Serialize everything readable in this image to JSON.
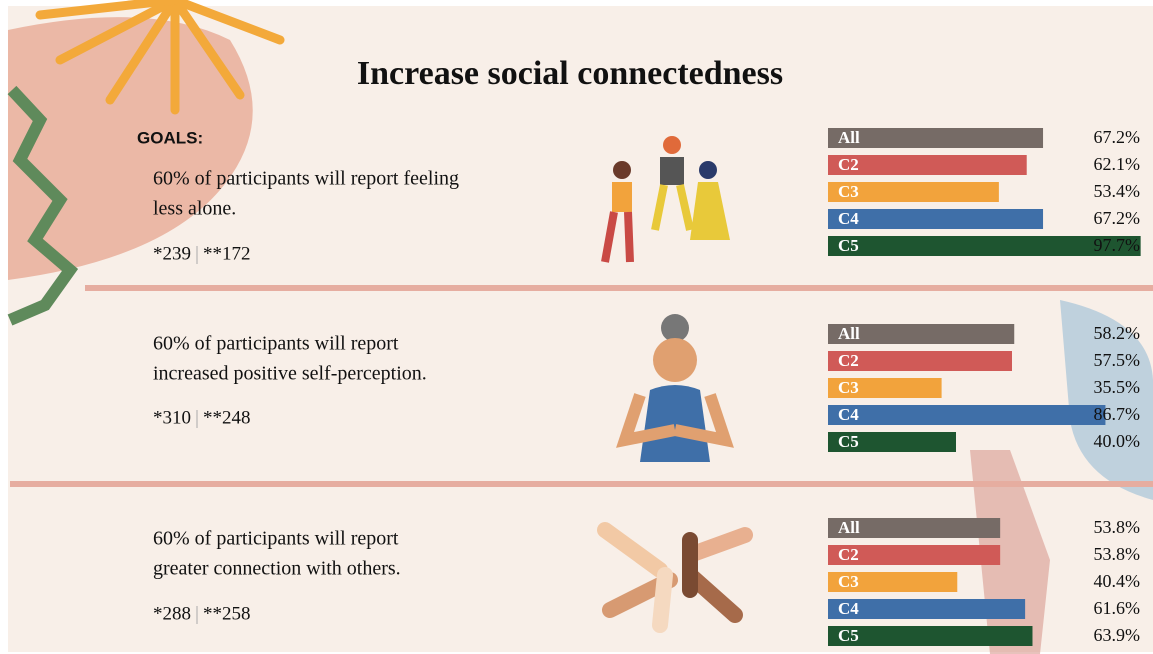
{
  "title": "Increase social connectedness",
  "goals_label": "GOALS:",
  "sections": [
    {
      "lines": [
        "60% of participants will report feeling",
        "less alone."
      ],
      "count_a": "*239",
      "count_b": "**172"
    },
    {
      "lines": [
        "60% of participants will report",
        "increased positive self-perception."
      ],
      "count_a": "*310",
      "count_b": "**248"
    },
    {
      "lines": [
        "60% of participants will report",
        "greater connection with others."
      ],
      "count_a": "*288",
      "count_b": "**258"
    }
  ],
  "chart_data": [
    {
      "type": "bar",
      "orientation": "horizontal",
      "categories": [
        "All",
        "C2",
        "C3",
        "C4",
        "C5"
      ],
      "values": [
        67.2,
        62.1,
        53.4,
        67.2,
        97.7
      ],
      "value_labels": [
        "67.2%",
        "62.1%",
        "53.4%",
        "67.2%",
        "97.7%"
      ],
      "colors": [
        "#766b66",
        "#d05a57",
        "#f2a33c",
        "#3f6fa8",
        "#1e5530"
      ],
      "xlim": [
        0,
        100
      ]
    },
    {
      "type": "bar",
      "orientation": "horizontal",
      "categories": [
        "All",
        "C2",
        "C3",
        "C4",
        "C5"
      ],
      "values": [
        58.2,
        57.5,
        35.5,
        86.7,
        40.0
      ],
      "value_labels": [
        "58.2%",
        "57.5%",
        "35.5%",
        "86.7%",
        "40.0%"
      ],
      "colors": [
        "#766b66",
        "#d05a57",
        "#f2a33c",
        "#3f6fa8",
        "#1e5530"
      ],
      "xlim": [
        0,
        100
      ]
    },
    {
      "type": "bar",
      "orientation": "horizontal",
      "categories": [
        "All",
        "C2",
        "C3",
        "C4",
        "C5"
      ],
      "values": [
        53.8,
        53.8,
        40.4,
        61.6,
        63.9
      ],
      "value_labels": [
        "53.8%",
        "53.8%",
        "40.4%",
        "61.6%",
        "63.9%"
      ],
      "colors": [
        "#766b66",
        "#d05a57",
        "#f2a33c",
        "#3f6fa8",
        "#1e5530"
      ],
      "xlim": [
        0,
        100
      ]
    }
  ]
}
